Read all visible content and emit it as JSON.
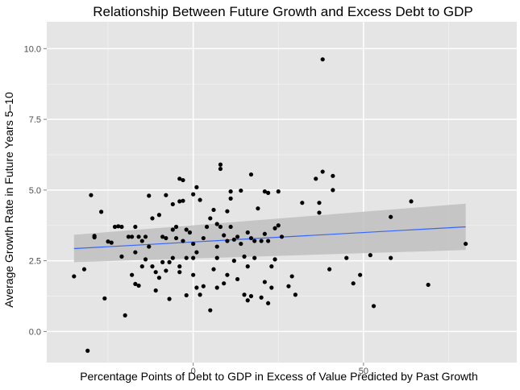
{
  "chart_data": {
    "type": "scatter",
    "title": "Relationship Between Future Growth and Excess Debt to GDP",
    "xlabel": "Percentage Points of Debt to GDP in Excess of Value Predicted by Past Growth",
    "ylabel": "Average Growth Rate in Future Years 5–10",
    "xlim": [
      -43,
      95
    ],
    "ylim": [
      -1.1,
      10.95
    ],
    "x_ticks": [
      0,
      50
    ],
    "x_tick_labels": [
      "0",
      "50"
    ],
    "y_ticks": [
      0,
      2.5,
      5,
      7.5,
      10
    ],
    "y_tick_labels": [
      "0.0",
      "2.5",
      "5.0",
      "7.5",
      "10.0"
    ],
    "grid": true,
    "legend": "none",
    "colors": {
      "panel_background": "#e5e5e5",
      "grid": "#ffffff",
      "points": "#000000",
      "trend_line": "#3366ff",
      "confidence_band": "#bfbfbf"
    },
    "trend_line": {
      "x": [
        -35,
        80
      ],
      "y": [
        2.93,
        3.7
      ],
      "band_lower": [
        2.45,
        2.88
      ],
      "band_upper": [
        3.42,
        4.52
      ]
    },
    "points": [
      {
        "x": 38,
        "y": 9.62
      },
      {
        "x": -35,
        "y": 1.95
      },
      {
        "x": -32,
        "y": 2.2
      },
      {
        "x": -31,
        "y": -0.68
      },
      {
        "x": -30,
        "y": 4.82
      },
      {
        "x": -29,
        "y": 3.38
      },
      {
        "x": -29,
        "y": 3.33
      },
      {
        "x": -27,
        "y": 4.23
      },
      {
        "x": -26,
        "y": 1.17
      },
      {
        "x": -25,
        "y": 3.18
      },
      {
        "x": -24,
        "y": 3.14
      },
      {
        "x": -23,
        "y": 3.7
      },
      {
        "x": -22,
        "y": 3.72
      },
      {
        "x": -21,
        "y": 3.7
      },
      {
        "x": -21,
        "y": 2.65
      },
      {
        "x": -20,
        "y": 0.57
      },
      {
        "x": -19,
        "y": 3.35
      },
      {
        "x": -18,
        "y": 3.35
      },
      {
        "x": -18,
        "y": 2.0
      },
      {
        "x": -17,
        "y": 1.68
      },
      {
        "x": -17,
        "y": 2.8
      },
      {
        "x": -17,
        "y": 3.7
      },
      {
        "x": -16,
        "y": 3.35
      },
      {
        "x": -16,
        "y": 1.62
      },
      {
        "x": -15,
        "y": 2.3
      },
      {
        "x": -15,
        "y": 3.2
      },
      {
        "x": -14,
        "y": 3.35
      },
      {
        "x": -14,
        "y": 2.55
      },
      {
        "x": -13,
        "y": 4.8
      },
      {
        "x": -13,
        "y": 3.0
      },
      {
        "x": -12,
        "y": 4.0
      },
      {
        "x": -12,
        "y": 2.3
      },
      {
        "x": -11,
        "y": 2.1
      },
      {
        "x": -11,
        "y": 1.45
      },
      {
        "x": -10,
        "y": 4.12
      },
      {
        "x": -10,
        "y": 1.9
      },
      {
        "x": -9,
        "y": 3.35
      },
      {
        "x": -9,
        "y": 2.45
      },
      {
        "x": -8,
        "y": 4.82
      },
      {
        "x": -8,
        "y": 3.3
      },
      {
        "x": -8,
        "y": 2.15
      },
      {
        "x": -7,
        "y": 1.15
      },
      {
        "x": -7,
        "y": 2.45
      },
      {
        "x": -6,
        "y": 3.6
      },
      {
        "x": -6,
        "y": 4.5
      },
      {
        "x": -6,
        "y": 2.6
      },
      {
        "x": -5,
        "y": 3.7
      },
      {
        "x": -5,
        "y": 3.3
      },
      {
        "x": -4,
        "y": 5.4
      },
      {
        "x": -4,
        "y": 4.6
      },
      {
        "x": -4,
        "y": 2.1
      },
      {
        "x": -4,
        "y": 2.3
      },
      {
        "x": -3,
        "y": 5.35
      },
      {
        "x": -3,
        "y": 4.62
      },
      {
        "x": -3,
        "y": 3.2
      },
      {
        "x": -2,
        "y": 3.6
      },
      {
        "x": -2,
        "y": 2.6
      },
      {
        "x": -2,
        "y": 1.28
      },
      {
        "x": -1,
        "y": 3.5
      },
      {
        "x": 0,
        "y": 4.85
      },
      {
        "x": 0,
        "y": 3.1
      },
      {
        "x": 0,
        "y": 2.6
      },
      {
        "x": 0,
        "y": 2.0
      },
      {
        "x": 1,
        "y": 5.1
      },
      {
        "x": 1,
        "y": 2.8
      },
      {
        "x": 1,
        "y": 1.55
      },
      {
        "x": 2,
        "y": 1.3
      },
      {
        "x": 2,
        "y": 4.65
      },
      {
        "x": 3,
        "y": 1.6
      },
      {
        "x": 3,
        "y": 3.3
      },
      {
        "x": 4,
        "y": 3.7
      },
      {
        "x": 5,
        "y": 4.0
      },
      {
        "x": 5,
        "y": 0.75
      },
      {
        "x": 6,
        "y": 4.3
      },
      {
        "x": 6,
        "y": 2.2
      },
      {
        "x": 7,
        "y": 3.8
      },
      {
        "x": 7,
        "y": 2.6
      },
      {
        "x": 7,
        "y": 1.55
      },
      {
        "x": 7,
        "y": 3.0
      },
      {
        "x": 8,
        "y": 5.9
      },
      {
        "x": 8,
        "y": 5.75
      },
      {
        "x": 8,
        "y": 3.7
      },
      {
        "x": 9,
        "y": 3.4
      },
      {
        "x": 9,
        "y": 1.7
      },
      {
        "x": 10,
        "y": 4.25
      },
      {
        "x": 10,
        "y": 3.2
      },
      {
        "x": 10,
        "y": 2.0
      },
      {
        "x": 11,
        "y": 4.7
      },
      {
        "x": 11,
        "y": 3.7
      },
      {
        "x": 11,
        "y": 4.95
      },
      {
        "x": 12,
        "y": 3.25
      },
      {
        "x": 12,
        "y": 2.5
      },
      {
        "x": 13,
        "y": 3.35
      },
      {
        "x": 13,
        "y": 1.85
      },
      {
        "x": 14,
        "y": 4.98
      },
      {
        "x": 14,
        "y": 3.1
      },
      {
        "x": 15,
        "y": 2.65
      },
      {
        "x": 15,
        "y": 1.3
      },
      {
        "x": 16,
        "y": 3.5
      },
      {
        "x": 16,
        "y": 2.3
      },
      {
        "x": 16,
        "y": 1.1
      },
      {
        "x": 17,
        "y": 1.25
      },
      {
        "x": 17,
        "y": 3.3
      },
      {
        "x": 17,
        "y": 5.55
      },
      {
        "x": 18,
        "y": 3.2
      },
      {
        "x": 18,
        "y": 2.6
      },
      {
        "x": 19,
        "y": 4.35
      },
      {
        "x": 20,
        "y": 3.2
      },
      {
        "x": 20,
        "y": 1.2
      },
      {
        "x": 21,
        "y": 3.45
      },
      {
        "x": 21,
        "y": 4.95
      },
      {
        "x": 21,
        "y": 1.75
      },
      {
        "x": 22,
        "y": 4.9
      },
      {
        "x": 22,
        "y": 3.2
      },
      {
        "x": 22,
        "y": 1.0
      },
      {
        "x": 23,
        "y": 2.3
      },
      {
        "x": 23,
        "y": 1.55
      },
      {
        "x": 24,
        "y": 3.65
      },
      {
        "x": 24,
        "y": 2.55
      },
      {
        "x": 25,
        "y": 4.95
      },
      {
        "x": 25,
        "y": 3.75
      },
      {
        "x": 26,
        "y": 3.35
      },
      {
        "x": 28,
        "y": 1.6
      },
      {
        "x": 29,
        "y": 1.95
      },
      {
        "x": 30,
        "y": 1.3
      },
      {
        "x": 32,
        "y": 4.55
      },
      {
        "x": 36,
        "y": 5.4
      },
      {
        "x": 37,
        "y": 4.2
      },
      {
        "x": 37,
        "y": 4.55
      },
      {
        "x": 38,
        "y": 5.65
      },
      {
        "x": 40,
        "y": 2.2
      },
      {
        "x": 41,
        "y": 5.5
      },
      {
        "x": 41,
        "y": 5.0
      },
      {
        "x": 45,
        "y": 2.6
      },
      {
        "x": 47,
        "y": 1.7
      },
      {
        "x": 49,
        "y": 2.0
      },
      {
        "x": 52,
        "y": 2.7
      },
      {
        "x": 53,
        "y": 0.9
      },
      {
        "x": 58,
        "y": 2.6
      },
      {
        "x": 58,
        "y": 4.05
      },
      {
        "x": 64,
        "y": 4.6
      },
      {
        "x": 69,
        "y": 1.65
      },
      {
        "x": 80,
        "y": 3.1
      }
    ]
  }
}
